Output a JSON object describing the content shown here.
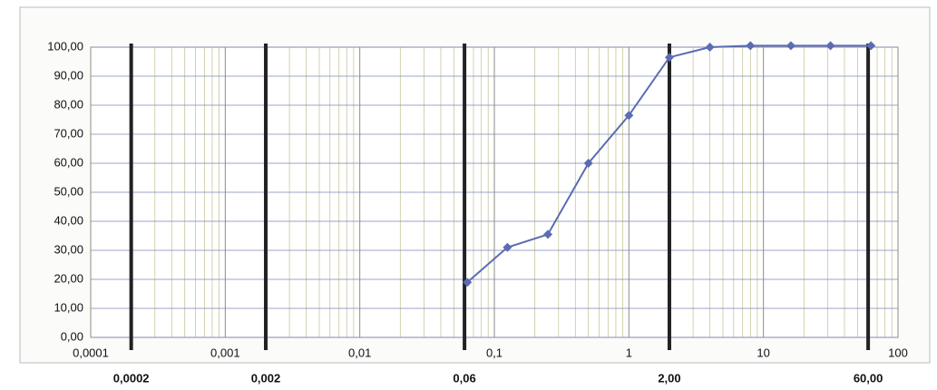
{
  "chart_data": {
    "type": "line",
    "x": [
      0.063,
      0.125,
      0.25,
      0.5,
      1,
      2,
      4,
      8,
      16,
      31.5,
      63
    ],
    "series": [
      {
        "color": "#5b6cb3",
        "values": [
          19,
          31,
          35.5,
          60,
          76.5,
          96.5,
          100,
          100.5,
          100.5,
          100.5,
          100.5
        ]
      }
    ],
    "xscale": "log",
    "xlim": [
      0.0001,
      100
    ],
    "xticks": [
      {
        "value": 0.0001,
        "label": "0,0001"
      },
      {
        "value": 0.001,
        "label": "0,001"
      },
      {
        "value": 0.01,
        "label": "0,01"
      },
      {
        "value": 0.1,
        "label": "0,1"
      },
      1,
      10,
      100
    ],
    "ylim": [
      0,
      100
    ],
    "yticks": [
      {
        "value": 0,
        "label": "0,00"
      },
      {
        "value": 10,
        "label": "10,00"
      },
      {
        "value": 20,
        "label": "20,00"
      },
      {
        "value": 30,
        "label": "30,00"
      },
      {
        "value": 40,
        "label": "40,00"
      },
      {
        "value": 50,
        "label": "50,00"
      },
      {
        "value": 60,
        "label": "60,00"
      },
      {
        "value": 70,
        "label": "70,00"
      },
      {
        "value": 80,
        "label": "80,00"
      },
      {
        "value": 90,
        "label": "90,00"
      },
      {
        "value": 100,
        "label": "100,00"
      }
    ],
    "boundaries": [
      {
        "value": 0.0002,
        "label": "0,0002"
      },
      {
        "value": 0.002,
        "label": "0,002"
      },
      {
        "value": 0.06,
        "label": "0,06"
      },
      {
        "value": 2,
        "label": "2,00"
      },
      {
        "value": 60,
        "label": "60,00"
      }
    ],
    "grid": true
  }
}
